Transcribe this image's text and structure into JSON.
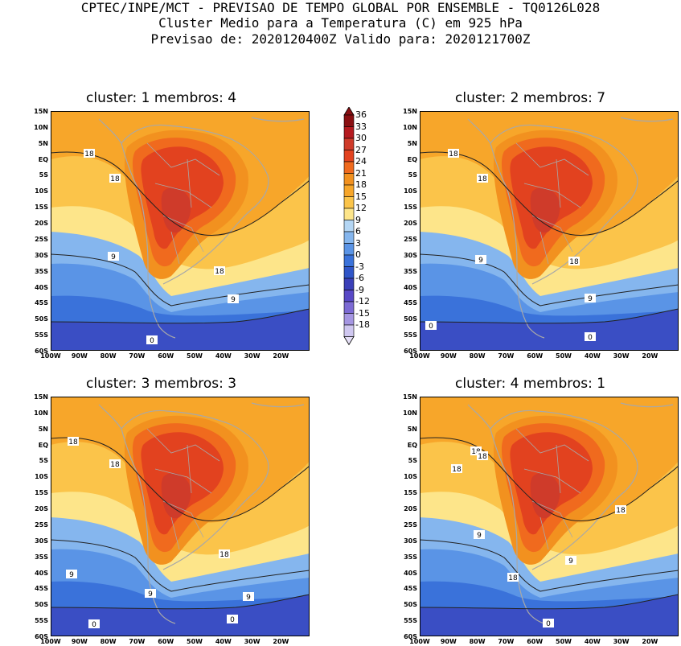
{
  "header": {
    "line1": "CPTEC/INPE/MCT - PREVISAO DE TEMPO GLOBAL POR ENSEMBLE - TQ0126L028",
    "line2": "Cluster Medio para a Temperatura (C) em 925 hPa",
    "line3": "Previsao de: 2020120400Z   Valido para: 2020121700Z"
  },
  "panels": [
    {
      "title": "cluster: 1   membros: 4",
      "contour_labels": [
        "18",
        "18",
        "9",
        "18",
        "9",
        "0"
      ]
    },
    {
      "title": "cluster: 2   membros: 7",
      "contour_labels": [
        "18",
        "18",
        "9",
        "18",
        "9",
        "0",
        "0"
      ]
    },
    {
      "title": "cluster: 3   membros: 3",
      "contour_labels": [
        "18",
        "18",
        "18",
        "9",
        "9",
        "9",
        "0",
        "0"
      ]
    },
    {
      "title": "cluster: 4   membros: 1",
      "contour_labels": [
        "18",
        "18",
        "18",
        "18",
        "9",
        "9",
        "18",
        "0"
      ]
    }
  ],
  "lat_labels": [
    "15N",
    "10N",
    "5N",
    "EQ",
    "5S",
    "10S",
    "15S",
    "20S",
    "25S",
    "30S",
    "35S",
    "40S",
    "45S",
    "50S",
    "55S",
    "60S"
  ],
  "lon_labels": [
    "100W",
    "90W",
    "80W",
    "70W",
    "60W",
    "50W",
    "40W",
    "30W",
    "20W"
  ],
  "colorbar": {
    "labels": [
      "36",
      "33",
      "30",
      "27",
      "24",
      "21",
      "18",
      "15",
      "12",
      "9",
      "6",
      "3",
      "0",
      "-3",
      "-6",
      "-9",
      "-12",
      "-15",
      "-18"
    ],
    "colors": [
      "#8a0f12",
      "#b51a1f",
      "#cf3b2a",
      "#e2421f",
      "#f06a1e",
      "#f2911f",
      "#f7a62a",
      "#fbc44a",
      "#fde58a",
      "#b4d6f4",
      "#85b6ee",
      "#5a94e6",
      "#3a72da",
      "#2f55c8",
      "#3a3fb8",
      "#5848c6",
      "#7c6ad4",
      "#a596e2",
      "#cfc7f0"
    ],
    "top_color": "#8a0f12",
    "bottom_color": "#e6e0f7"
  },
  "map_colors": {
    "cold_ocean_deep": "#3a4ec4",
    "cold_ocean": "#3a72da",
    "cool": "#5a94e6",
    "light_blue": "#85b6ee",
    "yellow": "#fde58a",
    "light_orange": "#fbc44a",
    "orange": "#f7a62a",
    "dark_orange": "#f2911f",
    "red_orange": "#f06a1e",
    "red": "#e2421f",
    "dark_red": "#cf3b2a",
    "coast": "#a8a8a8"
  }
}
